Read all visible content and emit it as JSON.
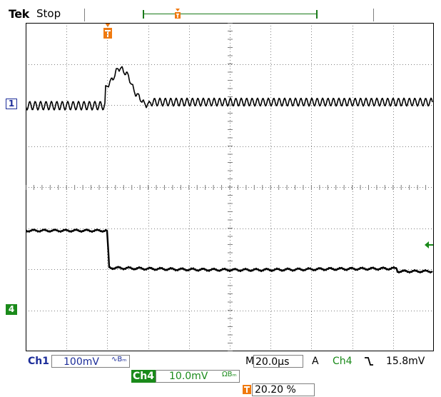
{
  "header": {
    "brand": "Tek",
    "acquisition_state": "Stop"
  },
  "channels": {
    "ch1": {
      "marker": "1",
      "label": "Ch1",
      "scale": "100mV",
      "coupling": "∿Bₘ",
      "color": "#1c2d99"
    },
    "ch4": {
      "marker": "4",
      "label": "Ch4",
      "scale": "10.0mV",
      "coupling": "ΩBₘ",
      "color": "#1a8a1a"
    }
  },
  "horizontal": {
    "label": "M",
    "timebase": "20.0µs"
  },
  "trigger": {
    "label": "A",
    "source": "Ch4",
    "slope_icon": "falling-edge-icon",
    "level": "15.8mV",
    "position": "20.20 %",
    "marker_color": "#f07a10"
  },
  "display": {
    "trace_color": "#000000",
    "grid_color": "#7f7f7f"
  }
}
